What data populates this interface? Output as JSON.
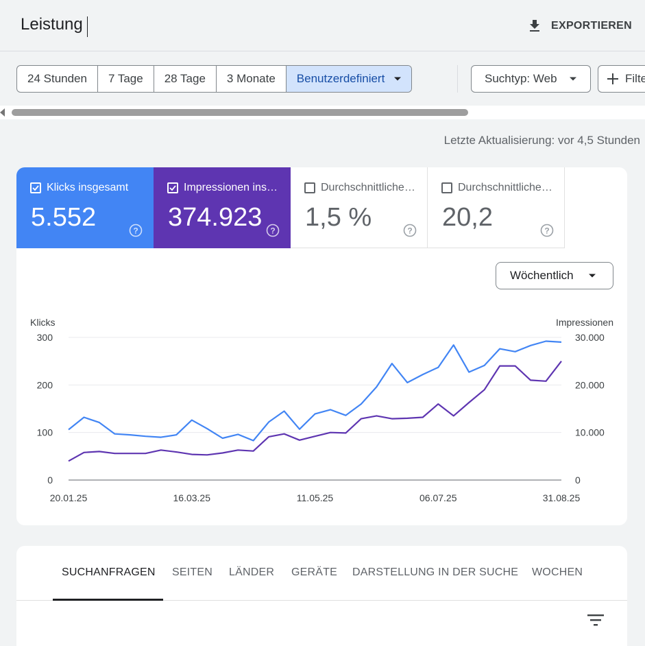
{
  "header": {
    "title": "Leistung",
    "export_label": "EXPORTIEREN"
  },
  "date_range": {
    "options": [
      "24 Stunden",
      "7 Tage",
      "28 Tage",
      "3 Monate",
      "Benutzerdefiniert"
    ],
    "selected": "Benutzerdefiniert"
  },
  "search_type": {
    "label": "Suchtyp: Web"
  },
  "filter_button": {
    "label": "Filter"
  },
  "last_update": "Letzte Aktualisierung: vor 4,5 Stunden",
  "metrics": [
    {
      "label": "Klicks insgesamt",
      "value": "5.552",
      "checked": true,
      "color": "#4285f4"
    },
    {
      "label": "Impressionen ins…",
      "value": "374.923",
      "checked": true,
      "color": "#5e35b1"
    },
    {
      "label": "Durchschnittliche…",
      "value": "1,5 %",
      "checked": false
    },
    {
      "label": "Durchschnittliche…",
      "value": "20,2",
      "checked": false
    }
  ],
  "granularity": {
    "selected": "Wöchentlich"
  },
  "chart_data": {
    "type": "line",
    "left_axis_label": "Klicks",
    "right_axis_label": "Impressionen",
    "left_ticks": [
      "300",
      "200",
      "100",
      "0"
    ],
    "right_ticks": [
      "30.000",
      "20.000",
      "10.000",
      "0"
    ],
    "ylim_left": [
      0,
      300
    ],
    "ylim_right": [
      0,
      30000
    ],
    "x_tick_labels": [
      "20.01.25",
      "16.03.25",
      "11.05.25",
      "06.07.25",
      "31.08.25"
    ],
    "x": [
      "20.01.25",
      "27.01.25",
      "03.02.25",
      "10.02.25",
      "17.02.25",
      "24.02.25",
      "03.03.25",
      "10.03.25",
      "16.03.25",
      "24.03.25",
      "31.03.25",
      "07.04.25",
      "14.04.25",
      "21.04.25",
      "28.04.25",
      "05.05.25",
      "11.05.25",
      "19.05.25",
      "26.05.25",
      "02.06.25",
      "09.06.25",
      "16.06.25",
      "23.06.25",
      "30.06.25",
      "06.07.25",
      "14.07.25",
      "21.07.25",
      "28.07.25",
      "04.08.25",
      "11.08.25",
      "18.08.25",
      "25.08.25",
      "31.08.25"
    ],
    "series": [
      {
        "name": "Klicks",
        "axis": "left",
        "color": "#4285f4",
        "values": [
          106,
          132,
          121,
          97,
          95,
          92,
          90,
          95,
          126,
          108,
          88,
          96,
          83,
          122,
          145,
          107,
          139,
          148,
          136,
          160,
          196,
          245,
          205,
          222,
          237,
          284,
          227,
          241,
          276,
          270,
          283,
          292,
          290
        ]
      },
      {
        "name": "Impressionen",
        "axis": "right",
        "color": "#5e35b1",
        "values": [
          4000,
          5800,
          6000,
          5600,
          5600,
          5600,
          6300,
          5900,
          5400,
          5300,
          5700,
          6300,
          6100,
          9100,
          9700,
          8400,
          9200,
          10000,
          9900,
          12900,
          13500,
          12900,
          13000,
          13200,
          16000,
          13500,
          16300,
          19000,
          24000,
          24000,
          21000,
          20800,
          25000
        ]
      }
    ]
  },
  "tabs": [
    "SUCHANFRAGEN",
    "SEITEN",
    "LÄNDER",
    "GERÄTE",
    "DARSTELLUNG IN DER SUCHE",
    "WOCHEN"
  ],
  "active_tab": "SUCHANFRAGEN",
  "icons": {
    "export": "download-icon",
    "filter": "filter-list-icon",
    "help": "help-icon"
  }
}
